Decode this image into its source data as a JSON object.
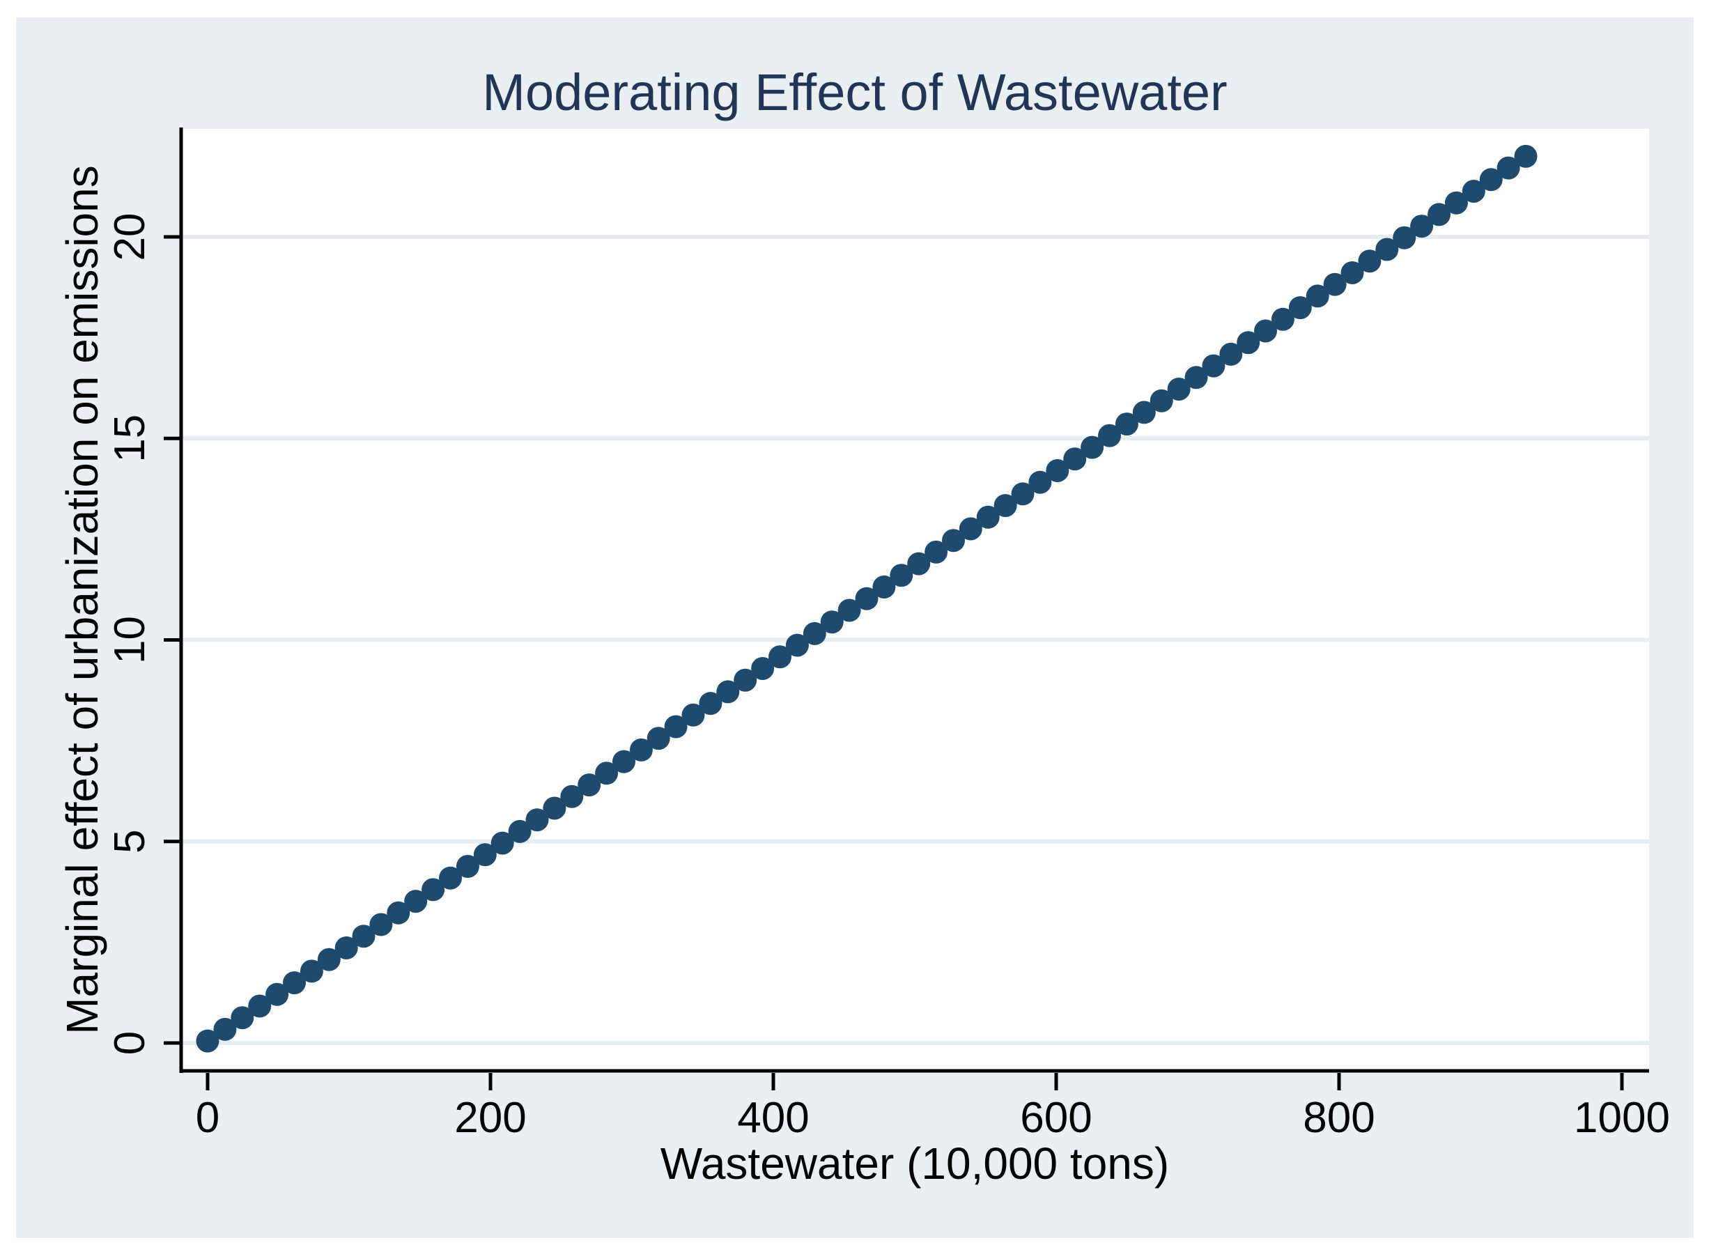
{
  "window": {
    "kind": "statistical graph (Stata-style margins plot)"
  },
  "colors": {
    "canvas_bg": "#ffffff",
    "graph_bg": "#e9eff2",
    "plot_bg": "#ffffff",
    "gridline": "#e6edf1",
    "axis": "#000000",
    "tick_label": "#000000",
    "title": "#213657",
    "marker": "#1e4a6e"
  },
  "chart_data": {
    "type": "scatter",
    "title": "Moderating Effect of Wastewater",
    "xlabel": "Wastewater (10,000 tons)",
    "ylabel": "Marginal effect of urbanization on emissions",
    "x_ticks": [
      0,
      200,
      400,
      600,
      800,
      1000
    ],
    "x_tick_labels": [
      "0",
      "200",
      "400",
      "600",
      "800",
      "1000"
    ],
    "y_ticks": [
      0,
      5,
      10,
      15,
      20
    ],
    "y_tick_labels": [
      "0",
      "5",
      "10",
      "15",
      "20"
    ],
    "xlim": [
      -19,
      1019
    ],
    "ylim": [
      -0.7,
      22.7
    ],
    "grid": "horizontal gridlines at y ticks only",
    "legend": "none",
    "series": [
      {
        "name": "marginal effect of urbanization on emissions",
        "marker": "filled circle",
        "model": "linear",
        "intercept": 0.05,
        "slope": 0.02355,
        "x_start": 0,
        "x_end": 932,
        "n_points": 77,
        "key_points": [
          [
            0,
            0.05
          ],
          [
            200,
            4.76
          ],
          [
            400,
            9.47
          ],
          [
            600,
            14.18
          ],
          [
            800,
            18.89
          ],
          [
            932,
            22.0
          ]
        ]
      }
    ]
  }
}
